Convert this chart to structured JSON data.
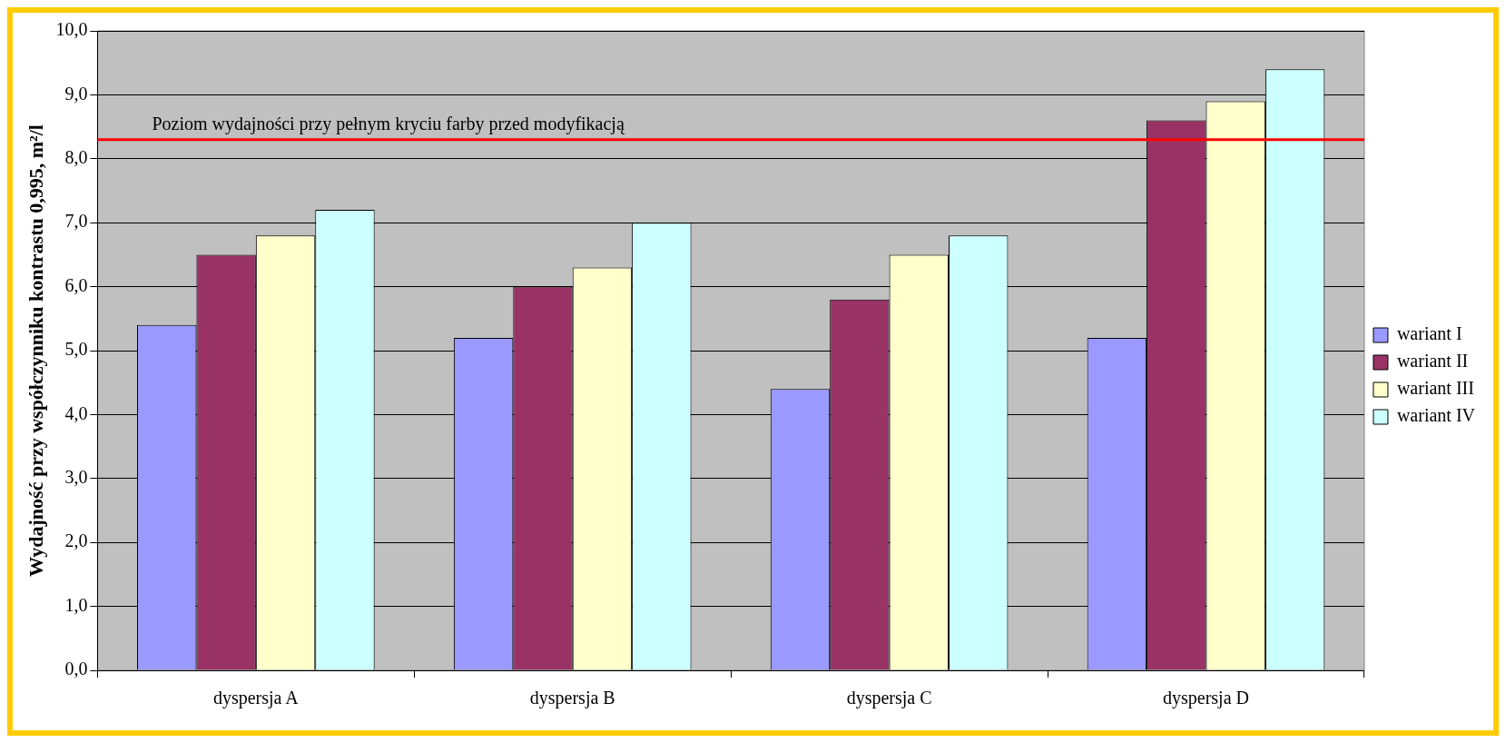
{
  "chart_data": {
    "type": "bar",
    "ylabel": "Wydajność przy współczynniku kontrastu 0,995, m²/l",
    "categories": [
      "dyspersja A",
      "dyspersja B",
      "dyspersja C",
      "dyspersja D"
    ],
    "series": [
      {
        "name": "wariant I",
        "color": "#9999ff",
        "values": [
          5.4,
          5.2,
          4.4,
          5.2
        ]
      },
      {
        "name": "wariant II",
        "color": "#993366",
        "values": [
          6.5,
          6.0,
          5.8,
          8.6
        ]
      },
      {
        "name": "wariant III",
        "color": "#ffffcc",
        "values": [
          6.8,
          6.3,
          6.5,
          8.9
        ]
      },
      {
        "name": "wariant IV",
        "color": "#ccffff",
        "values": [
          7.2,
          7.0,
          6.8,
          9.4
        ]
      }
    ],
    "ylim": [
      0,
      10
    ],
    "yticks": [
      {
        "value": 0,
        "label": "0,0"
      },
      {
        "value": 1,
        "label": "1,0"
      },
      {
        "value": 2,
        "label": "2,0"
      },
      {
        "value": 3,
        "label": "3,0"
      },
      {
        "value": 4,
        "label": "4,0"
      },
      {
        "value": 5,
        "label": "5,0"
      },
      {
        "value": 6,
        "label": "6,0"
      },
      {
        "value": 7,
        "label": "7,0"
      },
      {
        "value": 8,
        "label": "8,0"
      },
      {
        "value": 9,
        "label": "9,0"
      },
      {
        "value": 10,
        "label": "10,0"
      }
    ],
    "grid": "y",
    "legend": "right",
    "ref_lines": [
      {
        "axis": "y",
        "value": 8.3,
        "label": "Poziom wydajności przy pełnym kryciu farby przed modyfikacją",
        "color": "#ff0000"
      }
    ]
  }
}
